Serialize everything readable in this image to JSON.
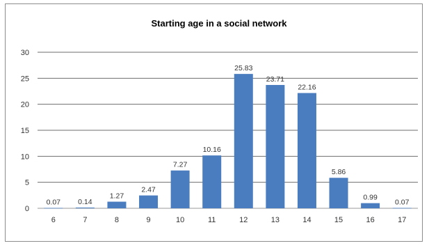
{
  "chart_data": {
    "type": "bar",
    "title": "Starting age in a social network",
    "categories": [
      "6",
      "7",
      "8",
      "9",
      "10",
      "11",
      "12",
      "13",
      "14",
      "15",
      "16",
      "17"
    ],
    "values": [
      0.07,
      0.14,
      1.27,
      2.47,
      7.27,
      10.16,
      25.83,
      23.71,
      22.16,
      5.86,
      0.99,
      0.07
    ],
    "value_labels": [
      "0.07",
      "0.14",
      "1.27",
      "2.47",
      "7.27",
      "10.16",
      "25.83",
      "23.71",
      "22.16",
      "5.86",
      "0.99",
      "0.07"
    ],
    "ylim": [
      0,
      30
    ],
    "yticks": [
      "0",
      "5",
      "10",
      "15",
      "20",
      "25",
      "30"
    ],
    "grid": true,
    "legend": "none",
    "bar_color": "#4a7dc0"
  }
}
